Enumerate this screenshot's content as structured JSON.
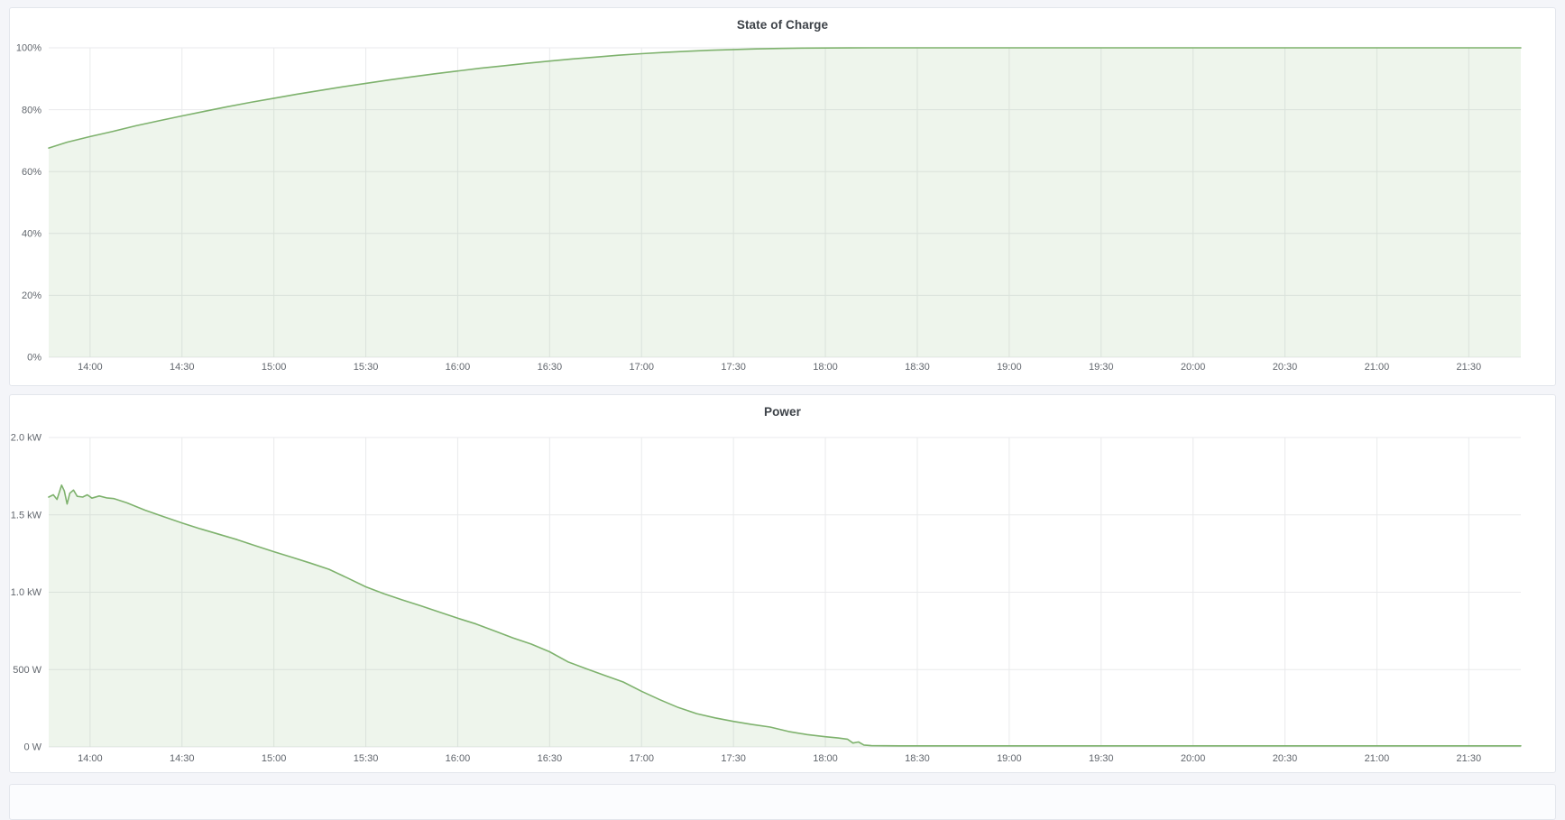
{
  "page": {
    "background": "#f4f5f9",
    "panel_background": "#ffffff",
    "grid_color": "#e9eaec",
    "axis_text_color": "#61666d",
    "accent_green": "#7eb26d"
  },
  "chart_data": [
    {
      "type": "area",
      "title": "State of Charge",
      "xlabel": "",
      "ylabel": "",
      "x_range": [
        13.775,
        21.783
      ],
      "y_range": [
        0,
        100
      ],
      "grid": true,
      "legend": "none",
      "x_ticks": [
        {
          "t": 14.0,
          "label": "14:00"
        },
        {
          "t": 14.5,
          "label": "14:30"
        },
        {
          "t": 15.0,
          "label": "15:00"
        },
        {
          "t": 15.5,
          "label": "15:30"
        },
        {
          "t": 16.0,
          "label": "16:00"
        },
        {
          "t": 16.5,
          "label": "16:30"
        },
        {
          "t": 17.0,
          "label": "17:00"
        },
        {
          "t": 17.5,
          "label": "17:30"
        },
        {
          "t": 18.0,
          "label": "18:00"
        },
        {
          "t": 18.5,
          "label": "18:30"
        },
        {
          "t": 19.0,
          "label": "19:00"
        },
        {
          "t": 19.5,
          "label": "19:30"
        },
        {
          "t": 20.0,
          "label": "20:00"
        },
        {
          "t": 20.5,
          "label": "20:30"
        },
        {
          "t": 21.0,
          "label": "21:00"
        },
        {
          "t": 21.5,
          "label": "21:30"
        }
      ],
      "y_ticks": [
        {
          "v": 0,
          "label": "0%"
        },
        {
          "v": 20,
          "label": "20%"
        },
        {
          "v": 40,
          "label": "40%"
        },
        {
          "v": 60,
          "label": "60%"
        },
        {
          "v": 80,
          "label": "80%"
        },
        {
          "v": 100,
          "label": "100%"
        }
      ],
      "series": [
        {
          "name": "State of Charge",
          "color": "#7eb26d",
          "fill": "rgba(126,178,109,0.13)",
          "line_width": 1.6,
          "points": [
            [
              13.775,
              67.6
            ],
            [
              13.875,
              69.5
            ],
            [
              14.0,
              71.3
            ],
            [
              14.125,
              73.0
            ],
            [
              14.25,
              74.8
            ],
            [
              14.375,
              76.4
            ],
            [
              14.5,
              78.0
            ],
            [
              14.625,
              79.5
            ],
            [
              14.75,
              81.0
            ],
            [
              14.875,
              82.4
            ],
            [
              15.0,
              83.7
            ],
            [
              15.125,
              85.0
            ],
            [
              15.25,
              86.2
            ],
            [
              15.375,
              87.4
            ],
            [
              15.5,
              88.5
            ],
            [
              15.625,
              89.6
            ],
            [
              15.75,
              90.6
            ],
            [
              15.875,
              91.6
            ],
            [
              16.0,
              92.5
            ],
            [
              16.125,
              93.4
            ],
            [
              16.25,
              94.2
            ],
            [
              16.375,
              95.0
            ],
            [
              16.5,
              95.7
            ],
            [
              16.625,
              96.4
            ],
            [
              16.75,
              97.0
            ],
            [
              16.875,
              97.6
            ],
            [
              17.0,
              98.1
            ],
            [
              17.125,
              98.5
            ],
            [
              17.25,
              98.9
            ],
            [
              17.375,
              99.2
            ],
            [
              17.5,
              99.45
            ],
            [
              17.625,
              99.65
            ],
            [
              17.75,
              99.8
            ],
            [
              17.875,
              99.9
            ],
            [
              18.0,
              99.95
            ],
            [
              18.125,
              99.98
            ],
            [
              18.25,
              100
            ],
            [
              21.783,
              100
            ]
          ]
        }
      ]
    },
    {
      "type": "area",
      "title": "Power",
      "xlabel": "",
      "ylabel": "",
      "x_range": [
        13.775,
        21.783
      ],
      "y_range": [
        0,
        2000
      ],
      "grid": true,
      "legend": "none",
      "x_ticks": [
        {
          "t": 14.0,
          "label": "14:00"
        },
        {
          "t": 14.5,
          "label": "14:30"
        },
        {
          "t": 15.0,
          "label": "15:00"
        },
        {
          "t": 15.5,
          "label": "15:30"
        },
        {
          "t": 16.0,
          "label": "16:00"
        },
        {
          "t": 16.5,
          "label": "16:30"
        },
        {
          "t": 17.0,
          "label": "17:00"
        },
        {
          "t": 17.5,
          "label": "17:30"
        },
        {
          "t": 18.0,
          "label": "18:00"
        },
        {
          "t": 18.5,
          "label": "18:30"
        },
        {
          "t": 19.0,
          "label": "19:00"
        },
        {
          "t": 19.5,
          "label": "19:30"
        },
        {
          "t": 20.0,
          "label": "20:00"
        },
        {
          "t": 20.5,
          "label": "20:30"
        },
        {
          "t": 21.0,
          "label": "21:00"
        },
        {
          "t": 21.5,
          "label": "21:30"
        }
      ],
      "y_ticks": [
        {
          "v": 0,
          "label": "0 W"
        },
        {
          "v": 500,
          "label": "500 W"
        },
        {
          "v": 1000,
          "label": "1.0 kW"
        },
        {
          "v": 1500,
          "label": "1.5 kW"
        },
        {
          "v": 2000,
          "label": "2.0 kW"
        }
      ],
      "series": [
        {
          "name": "Power",
          "color": "#7eb26d",
          "fill": "rgba(126,178,109,0.13)",
          "line_width": 1.6,
          "points": [
            [
              13.775,
              1615
            ],
            [
              13.8,
              1630
            ],
            [
              13.82,
              1600
            ],
            [
              13.845,
              1692
            ],
            [
              13.86,
              1655
            ],
            [
              13.875,
              1570
            ],
            [
              13.89,
              1640
            ],
            [
              13.91,
              1660
            ],
            [
              13.93,
              1620
            ],
            [
              13.96,
              1615
            ],
            [
              13.985,
              1630
            ],
            [
              14.01,
              1608
            ],
            [
              14.05,
              1622
            ],
            [
              14.09,
              1610
            ],
            [
              14.13,
              1605
            ],
            [
              14.2,
              1578
            ],
            [
              14.3,
              1530
            ],
            [
              14.4,
              1488
            ],
            [
              14.5,
              1448
            ],
            [
              14.6,
              1410
            ],
            [
              14.7,
              1375
            ],
            [
              14.8,
              1340
            ],
            [
              14.9,
              1300
            ],
            [
              15.0,
              1262
            ],
            [
              15.1,
              1225
            ],
            [
              15.2,
              1188
            ],
            [
              15.3,
              1148
            ],
            [
              15.4,
              1092
            ],
            [
              15.5,
              1035
            ],
            [
              15.6,
              990
            ],
            [
              15.7,
              950
            ],
            [
              15.8,
              912
            ],
            [
              15.9,
              872
            ],
            [
              16.0,
              832
            ],
            [
              16.1,
              795
            ],
            [
              16.2,
              750
            ],
            [
              16.3,
              705
            ],
            [
              16.4,
              665
            ],
            [
              16.5,
              615
            ],
            [
              16.6,
              550
            ],
            [
              16.7,
              505
            ],
            [
              16.8,
              462
            ],
            [
              16.9,
              420
            ],
            [
              17.0,
              360
            ],
            [
              17.1,
              305
            ],
            [
              17.2,
              255
            ],
            [
              17.3,
              215
            ],
            [
              17.4,
              188
            ],
            [
              17.5,
              165
            ],
            [
              17.6,
              145
            ],
            [
              17.7,
              128
            ],
            [
              17.8,
              100
            ],
            [
              17.9,
              80
            ],
            [
              18.0,
              66
            ],
            [
              18.07,
              58
            ],
            [
              18.12,
              50
            ],
            [
              18.15,
              25
            ],
            [
              18.18,
              32
            ],
            [
              18.21,
              12
            ],
            [
              18.25,
              8
            ],
            [
              18.4,
              7
            ],
            [
              21.783,
              7
            ]
          ]
        }
      ]
    }
  ]
}
